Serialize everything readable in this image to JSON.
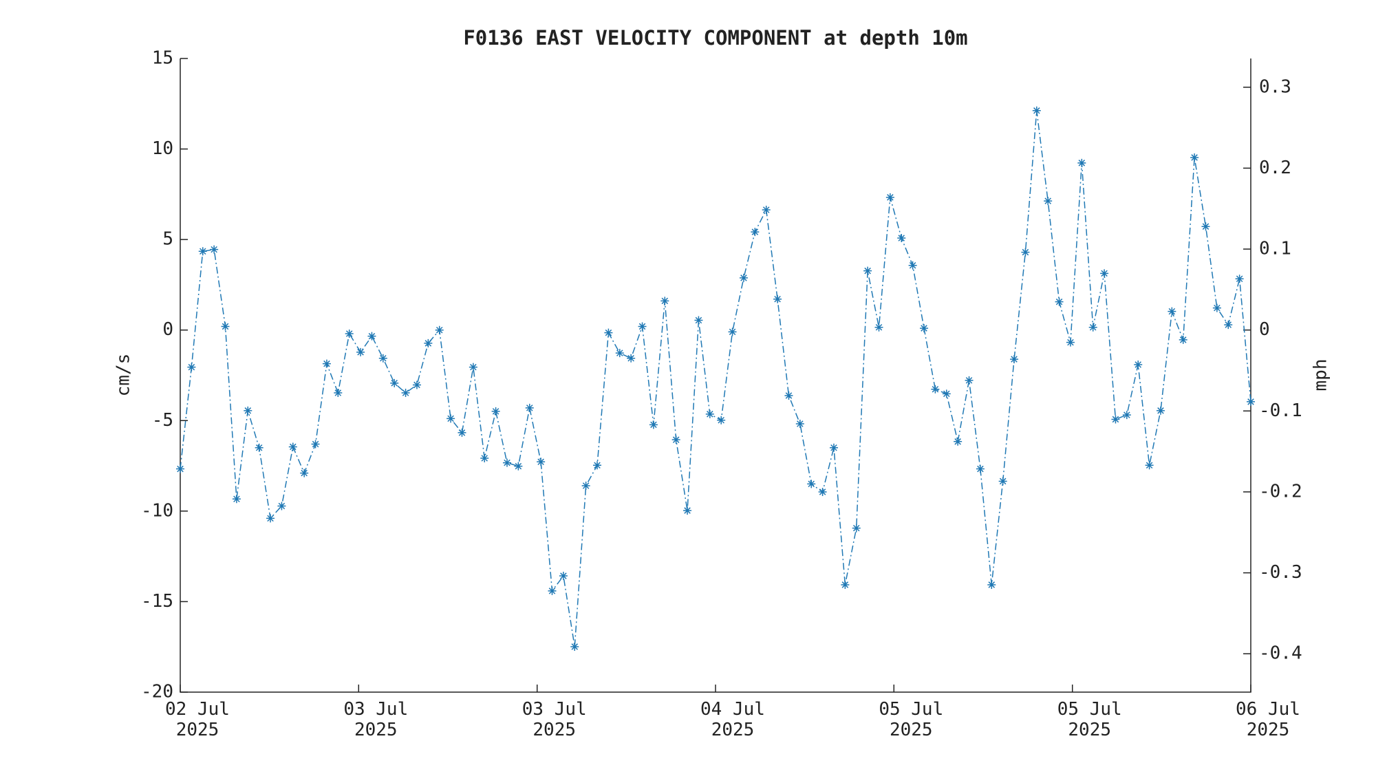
{
  "chart_data": {
    "type": "line",
    "title": "F0136 EAST VELOCITY COMPONENT at depth 10m",
    "y_label": "cm/s",
    "y2_label": "mph",
    "x": [
      0,
      1,
      2,
      3,
      4,
      5,
      6,
      7,
      8,
      9,
      10,
      11,
      12,
      13,
      14,
      15,
      16,
      17,
      18,
      19,
      20,
      21,
      22,
      23,
      24,
      25,
      26,
      27,
      28,
      29,
      30,
      31,
      32,
      33,
      34,
      35,
      36,
      37,
      38,
      39,
      40,
      41,
      42,
      43,
      44,
      45,
      46,
      47,
      48,
      49,
      50,
      51,
      52,
      53,
      54,
      55,
      56,
      57,
      58,
      59,
      60,
      61,
      62,
      63,
      64,
      65,
      66,
      67,
      68,
      69,
      70,
      71,
      72,
      73,
      74,
      75,
      76,
      77,
      78,
      79,
      80,
      81,
      82,
      83,
      84,
      85,
      86,
      87,
      88,
      89,
      90,
      91,
      92,
      93,
      94,
      95
    ],
    "series": [
      {
        "color": "#1f78b4",
        "values": [
          -7.67,
          -2.05,
          4.35,
          4.45,
          0.2,
          -9.33,
          -4.45,
          -6.5,
          -10.4,
          -9.72,
          -6.45,
          -7.9,
          -6.3,
          -1.86,
          -3.47,
          -0.2,
          -1.22,
          -0.34,
          -1.56,
          -2.93,
          -3.47,
          -3.03,
          -0.73,
          0,
          -4.89,
          -5.67,
          -2.05,
          -7.08,
          -4.49,
          -7.33,
          -7.52,
          -4.3,
          -7.28,
          -14.41,
          -13.58,
          -17.49,
          -8.6,
          -7.47,
          -0.15,
          -1.27,
          -1.56,
          0.2,
          -5.23,
          1.61,
          -6.06,
          -9.97,
          0.54,
          -4.64,
          -4.98,
          -0.1,
          2.88,
          5.42,
          6.64,
          1.71,
          -3.62,
          -5.18,
          -8.5,
          -8.94,
          -6.5,
          -14.07,
          -10.94,
          3.27,
          0.15,
          7.33,
          5.08,
          3.57,
          0.1,
          -3.27,
          -3.52,
          -6.16,
          -2.78,
          -7.67,
          -14.07,
          -8.35,
          -1.61,
          4.3,
          12.12,
          7.13,
          1.56,
          -0.68,
          9.23,
          0.15,
          3.13,
          -4.93,
          -4.69,
          -1.91,
          -7.47,
          -4.45,
          1.03,
          -0.54,
          9.53,
          5.72,
          1.22,
          0.29,
          2.83,
          -3.96
        ]
      }
    ],
    "xlim": [
      0,
      95
    ],
    "xticks": [
      {
        "value": 0,
        "label": "02 Jul\n2025"
      },
      {
        "value": 15.83,
        "label": "03 Jul\n2025"
      },
      {
        "value": 31.67,
        "label": "03 Jul\n2025"
      },
      {
        "value": 47.5,
        "label": "04 Jul\n2025"
      },
      {
        "value": 63.33,
        "label": "05 Jul\n2025"
      },
      {
        "value": 79.17,
        "label": "05 Jul\n2025"
      },
      {
        "value": 95,
        "label": "06 Jul\n2025"
      }
    ],
    "ylim": [
      -20,
      15
    ],
    "yticks": [
      -20,
      -15,
      -10,
      -5,
      0,
      5,
      10,
      15
    ],
    "y2lim": [
      -0.4474,
      0.3355
    ],
    "y2ticks": [
      -0.4,
      -0.3,
      -0.2,
      -0.1,
      0,
      0.1,
      0.2,
      0.3
    ],
    "grid": false
  }
}
